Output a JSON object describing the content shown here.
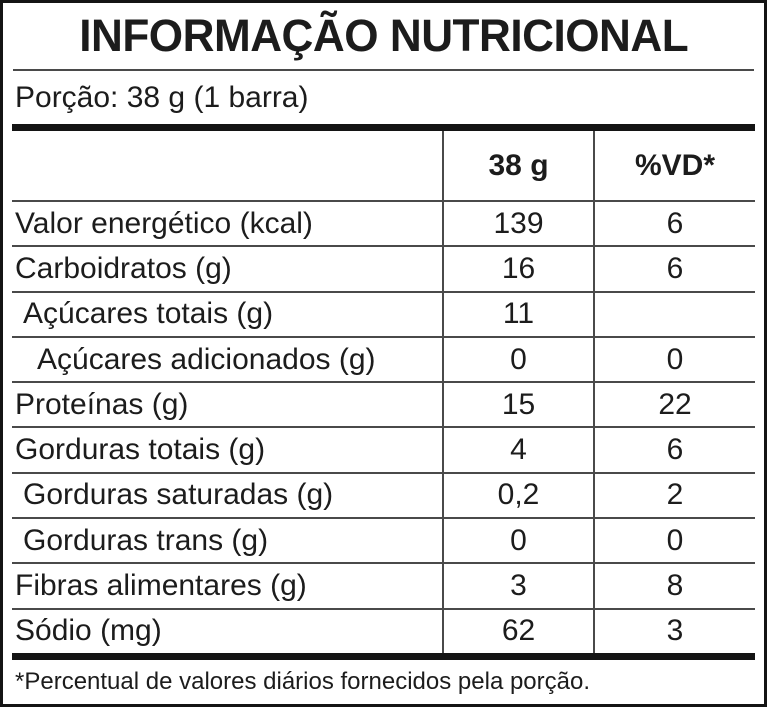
{
  "title": "INFORMAÇÃO NUTRICIONAL",
  "portion": "Porção: 38 g (1 barra)",
  "table": {
    "header": {
      "nutrient": "",
      "amount": "38 g",
      "vd": "%VD*"
    },
    "rows": [
      {
        "label": "Valor energético (kcal)",
        "amount": "139",
        "vd": "6"
      },
      {
        "label": "Carboidratos (g)",
        "amount": "16",
        "vd": "6"
      },
      {
        "label": "Açúcares totais (g)",
        "amount": "11",
        "vd": ""
      },
      {
        "label": "Açúcares adicionados (g)",
        "amount": "0",
        "vd": "0"
      },
      {
        "label": "Proteínas (g)",
        "amount": "15",
        "vd": "22"
      },
      {
        "label": "Gorduras totais (g)",
        "amount": "4",
        "vd": "6"
      },
      {
        "label": "Gorduras saturadas (g)",
        "amount": "0,2",
        "vd": "2"
      },
      {
        "label": "Gorduras trans (g)",
        "amount": "0",
        "vd": "0"
      },
      {
        "label": "Fibras alimentares (g)",
        "amount": "3",
        "vd": "8"
      },
      {
        "label": "Sódio (mg)",
        "amount": "62",
        "vd": "3"
      }
    ]
  },
  "footnote": "*Percentual de valores diários fornecidos pela porção.",
  "colors": {
    "border": "#141414",
    "rule": "#4a4a4a",
    "text": "#1c1c1c",
    "background": "#ffffff"
  }
}
